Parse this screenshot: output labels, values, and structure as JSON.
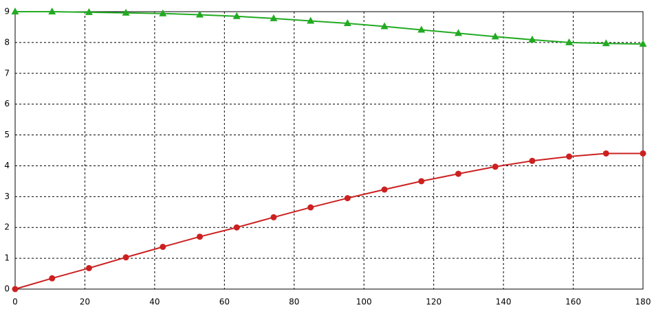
{
  "chart_data": {
    "type": "line",
    "x": [
      0,
      10.59,
      21.18,
      31.76,
      42.35,
      52.94,
      63.53,
      74.12,
      84.71,
      95.29,
      105.88,
      116.47,
      127.06,
      137.65,
      148.24,
      158.82,
      169.41,
      180
    ],
    "series": [
      {
        "color": "#22aa22",
        "marker": "triangle",
        "values": [
          9,
          9,
          8.98,
          8.96,
          8.94,
          8.9,
          8.85,
          8.78,
          8.7,
          8.62,
          8.52,
          8.41,
          8.3,
          8.19,
          8.09,
          8.0,
          7.97,
          7.95
        ]
      },
      {
        "color": "#cc2020",
        "marker": "circle",
        "values": [
          0,
          0.35,
          0.68,
          1.03,
          1.37,
          1.7,
          2.0,
          2.33,
          2.65,
          2.95,
          3.23,
          3.5,
          3.74,
          3.97,
          4.16,
          4.3,
          4.4,
          4.4
        ]
      }
    ],
    "xlim": [
      0,
      180
    ],
    "xticks": [
      0,
      20,
      40,
      60,
      80,
      100,
      120,
      140,
      160,
      180
    ],
    "ylim": [
      0,
      9
    ],
    "yticks": [
      0,
      1,
      2,
      3,
      4,
      5,
      6,
      7,
      8,
      9
    ],
    "grid": true
  }
}
